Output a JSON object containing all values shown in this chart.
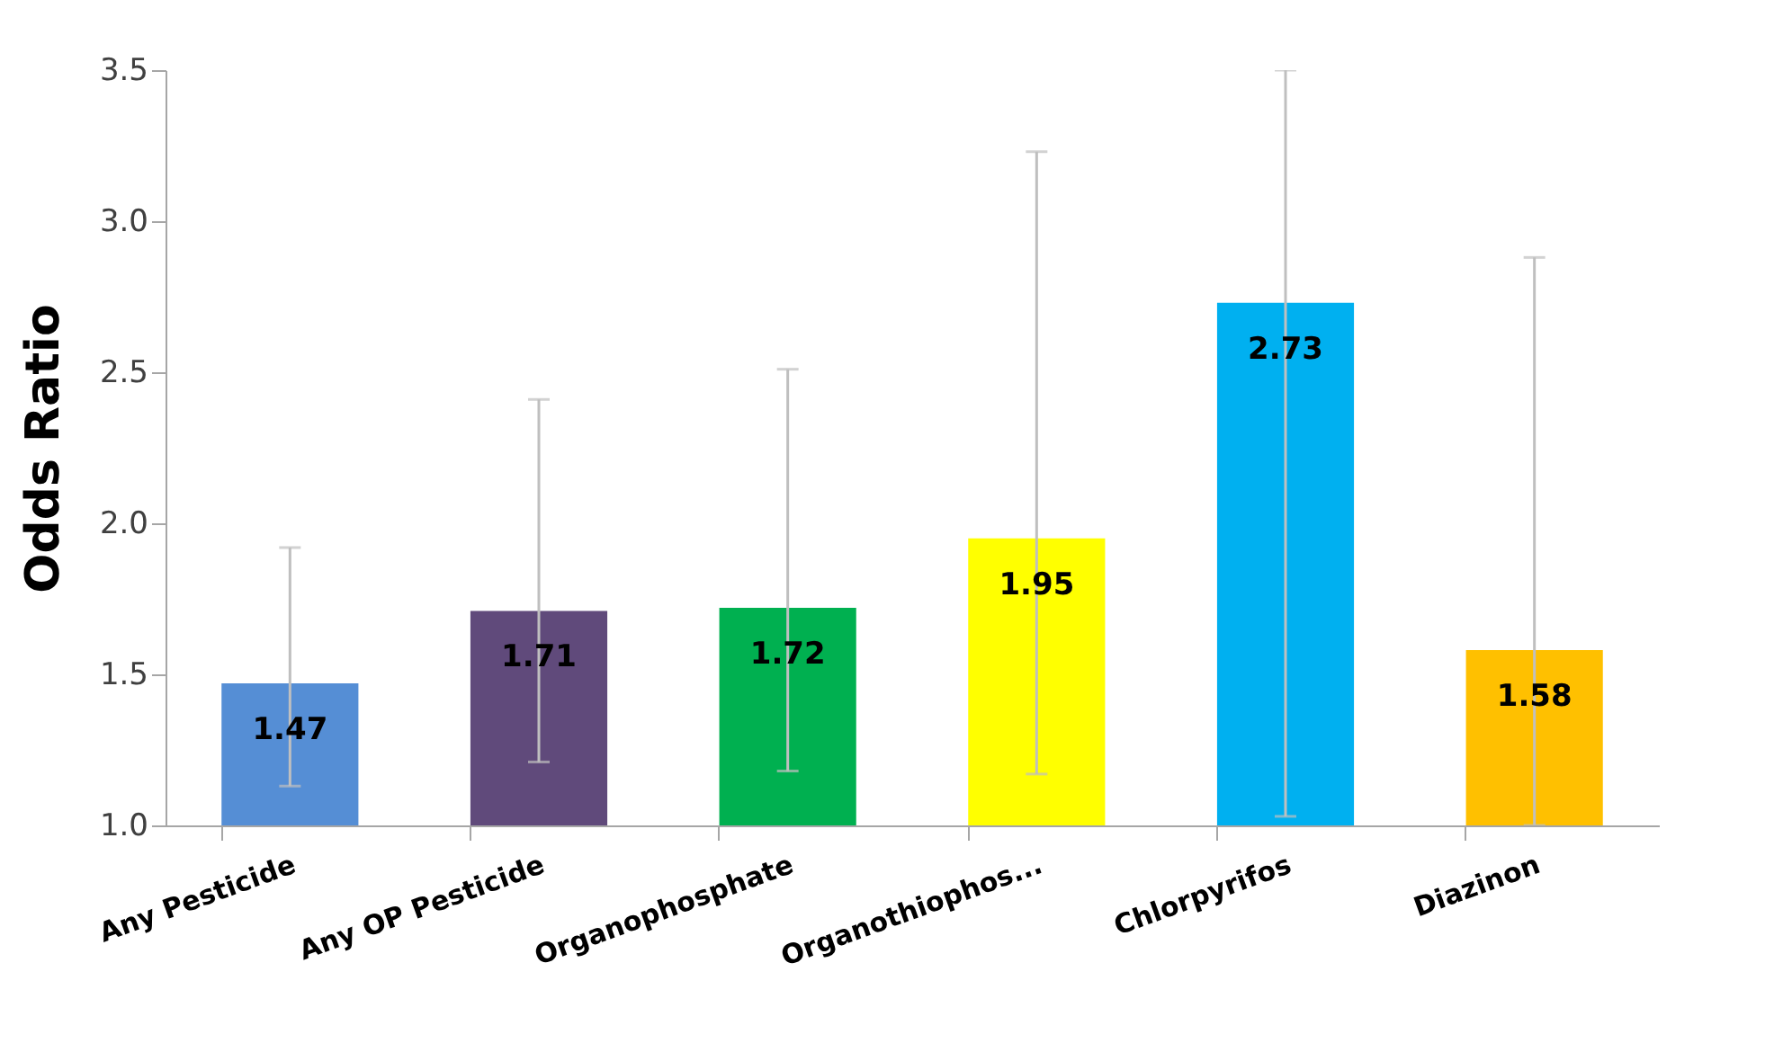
{
  "chart_data": {
    "type": "bar",
    "ylabel": "Odds Ratio",
    "categories": [
      "Any Pesticide",
      "Any OP Pesticide",
      "Organophosphate",
      "Organothiophos...",
      "Chlorpyrifos",
      "Diazinon"
    ],
    "values": [
      1.47,
      1.71,
      1.72,
      1.95,
      2.73,
      1.58
    ],
    "colors": [
      "#558ed5",
      "#604a7b",
      "#00b050",
      "#ffff00",
      "#00b0f0",
      "#ffc000"
    ],
    "errors": [
      [
        1.13,
        1.92
      ],
      [
        1.21,
        2.41
      ],
      [
        1.18,
        2.51
      ],
      [
        1.17,
        3.23
      ],
      [
        1.03,
        3.5
      ],
      [
        1.0,
        2.88
      ]
    ],
    "ylim": [
      1.0,
      3.5
    ],
    "yticks": [
      {
        "value": 1.0,
        "label": "1.0"
      },
      {
        "value": 1.5,
        "label": "1.5"
      },
      {
        "value": 2.0,
        "label": "2.0"
      },
      {
        "value": 2.5,
        "label": "2.5"
      },
      {
        "value": 3.0,
        "label": "3.0"
      },
      {
        "value": 3.5,
        "label": "3.5"
      }
    ],
    "data_labels": true,
    "grid": false
  }
}
